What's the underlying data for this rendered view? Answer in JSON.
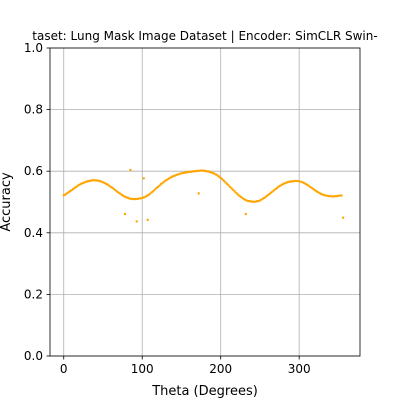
{
  "chart_data": {
    "type": "scatter",
    "title": "taset: Lung Mask Image Dataset | Encoder: SimCLR Swin-",
    "xlabel": "Theta (Degrees)",
    "ylabel": "Accuracy",
    "xlim": [
      -17.5,
      377.5
    ],
    "ylim": [
      0.0,
      1.0
    ],
    "x_ticks": [
      0,
      100,
      200,
      300
    ],
    "y_ticks": [
      0.0,
      0.2,
      0.4,
      0.6,
      0.8,
      1.0
    ],
    "x_tick_labels": [
      "0",
      "100",
      "200",
      "300"
    ],
    "y_tick_labels": [
      "0.0",
      "0.2",
      "0.4",
      "0.6",
      "0.8",
      "1.0"
    ],
    "grid": true,
    "marker_color": "#FFA500",
    "points": [
      [
        0,
        0.522
      ],
      [
        2,
        0.524
      ],
      [
        4,
        0.528
      ],
      [
        6,
        0.531
      ],
      [
        8,
        0.535
      ],
      [
        10,
        0.538
      ],
      [
        12,
        0.542
      ],
      [
        14,
        0.546
      ],
      [
        16,
        0.549
      ],
      [
        18,
        0.553
      ],
      [
        20,
        0.556
      ],
      [
        22,
        0.559
      ],
      [
        24,
        0.561
      ],
      [
        26,
        0.563
      ],
      [
        28,
        0.565
      ],
      [
        30,
        0.567
      ],
      [
        32,
        0.568
      ],
      [
        34,
        0.569
      ],
      [
        36,
        0.57
      ],
      [
        38,
        0.571
      ],
      [
        40,
        0.57
      ],
      [
        42,
        0.57
      ],
      [
        44,
        0.569
      ],
      [
        46,
        0.568
      ],
      [
        48,
        0.566
      ],
      [
        50,
        0.564
      ],
      [
        52,
        0.562
      ],
      [
        54,
        0.559
      ],
      [
        56,
        0.556
      ],
      [
        58,
        0.553
      ],
      [
        60,
        0.549
      ],
      [
        62,
        0.546
      ],
      [
        64,
        0.542
      ],
      [
        66,
        0.538
      ],
      [
        68,
        0.534
      ],
      [
        70,
        0.53
      ],
      [
        72,
        0.527
      ],
      [
        74,
        0.523
      ],
      [
        76,
        0.52
      ],
      [
        78,
        0.517
      ],
      [
        80,
        0.515
      ],
      [
        82,
        0.513
      ],
      [
        84,
        0.511
      ],
      [
        86,
        0.51
      ],
      [
        88,
        0.51
      ],
      [
        90,
        0.509
      ],
      [
        92,
        0.51
      ],
      [
        94,
        0.51
      ],
      [
        96,
        0.511
      ],
      [
        98,
        0.512
      ],
      [
        100,
        0.513
      ],
      [
        102,
        0.515
      ],
      [
        104,
        0.517
      ],
      [
        106,
        0.52
      ],
      [
        108,
        0.523
      ],
      [
        110,
        0.527
      ],
      [
        112,
        0.531
      ],
      [
        114,
        0.535
      ],
      [
        116,
        0.54
      ],
      [
        118,
        0.545
      ],
      [
        120,
        0.549
      ],
      [
        122,
        0.553
      ],
      [
        124,
        0.558
      ],
      [
        126,
        0.562
      ],
      [
        128,
        0.566
      ],
      [
        130,
        0.57
      ],
      [
        132,
        0.573
      ],
      [
        134,
        0.576
      ],
      [
        136,
        0.579
      ],
      [
        138,
        0.582
      ],
      [
        140,
        0.584
      ],
      [
        142,
        0.586
      ],
      [
        144,
        0.588
      ],
      [
        146,
        0.59
      ],
      [
        148,
        0.592
      ],
      [
        150,
        0.593
      ],
      [
        152,
        0.594
      ],
      [
        154,
        0.595
      ],
      [
        156,
        0.596
      ],
      [
        158,
        0.597
      ],
      [
        160,
        0.598
      ],
      [
        162,
        0.598
      ],
      [
        164,
        0.599
      ],
      [
        166,
        0.6
      ],
      [
        168,
        0.6
      ],
      [
        170,
        0.601
      ],
      [
        172,
        0.601
      ],
      [
        174,
        0.602
      ],
      [
        176,
        0.602
      ],
      [
        178,
        0.602
      ],
      [
        180,
        0.601
      ],
      [
        182,
        0.6
      ],
      [
        184,
        0.599
      ],
      [
        186,
        0.598
      ],
      [
        188,
        0.596
      ],
      [
        190,
        0.594
      ],
      [
        192,
        0.592
      ],
      [
        194,
        0.589
      ],
      [
        196,
        0.586
      ],
      [
        198,
        0.582
      ],
      [
        200,
        0.578
      ],
      [
        202,
        0.574
      ],
      [
        204,
        0.569
      ],
      [
        206,
        0.564
      ],
      [
        208,
        0.559
      ],
      [
        210,
        0.554
      ],
      [
        212,
        0.549
      ],
      [
        214,
        0.544
      ],
      [
        216,
        0.539
      ],
      [
        218,
        0.534
      ],
      [
        220,
        0.529
      ],
      [
        222,
        0.524
      ],
      [
        224,
        0.52
      ],
      [
        226,
        0.516
      ],
      [
        228,
        0.512
      ],
      [
        230,
        0.509
      ],
      [
        232,
        0.506
      ],
      [
        234,
        0.504
      ],
      [
        236,
        0.503
      ],
      [
        238,
        0.502
      ],
      [
        240,
        0.501
      ],
      [
        242,
        0.501
      ],
      [
        244,
        0.501
      ],
      [
        246,
        0.502
      ],
      [
        248,
        0.503
      ],
      [
        250,
        0.505
      ],
      [
        252,
        0.508
      ],
      [
        254,
        0.511
      ],
      [
        256,
        0.514
      ],
      [
        258,
        0.518
      ],
      [
        260,
        0.522
      ],
      [
        262,
        0.526
      ],
      [
        264,
        0.53
      ],
      [
        266,
        0.534
      ],
      [
        268,
        0.538
      ],
      [
        270,
        0.542
      ],
      [
        272,
        0.546
      ],
      [
        274,
        0.55
      ],
      [
        276,
        0.553
      ],
      [
        278,
        0.556
      ],
      [
        280,
        0.559
      ],
      [
        282,
        0.561
      ],
      [
        284,
        0.563
      ],
      [
        286,
        0.565
      ],
      [
        288,
        0.566
      ],
      [
        290,
        0.567
      ],
      [
        292,
        0.567
      ],
      [
        294,
        0.568
      ],
      [
        296,
        0.568
      ],
      [
        298,
        0.568
      ],
      [
        300,
        0.567
      ],
      [
        302,
        0.566
      ],
      [
        304,
        0.564
      ],
      [
        306,
        0.562
      ],
      [
        308,
        0.559
      ],
      [
        310,
        0.556
      ],
      [
        312,
        0.553
      ],
      [
        314,
        0.549
      ],
      [
        316,
        0.546
      ],
      [
        318,
        0.542
      ],
      [
        320,
        0.538
      ],
      [
        322,
        0.535
      ],
      [
        324,
        0.532
      ],
      [
        326,
        0.529
      ],
      [
        328,
        0.526
      ],
      [
        330,
        0.524
      ],
      [
        332,
        0.522
      ],
      [
        334,
        0.521
      ],
      [
        336,
        0.52
      ],
      [
        338,
        0.519
      ],
      [
        340,
        0.519
      ],
      [
        342,
        0.518
      ],
      [
        344,
        0.518
      ],
      [
        346,
        0.519
      ],
      [
        348,
        0.519
      ],
      [
        350,
        0.52
      ],
      [
        352,
        0.521
      ],
      [
        354,
        0.521
      ],
      [
        78,
        0.461
      ],
      [
        85,
        0.604
      ],
      [
        93,
        0.437
      ],
      [
        102,
        0.577
      ],
      [
        107,
        0.442
      ],
      [
        172,
        0.528
      ],
      [
        232,
        0.461
      ],
      [
        356,
        0.449
      ]
    ]
  }
}
